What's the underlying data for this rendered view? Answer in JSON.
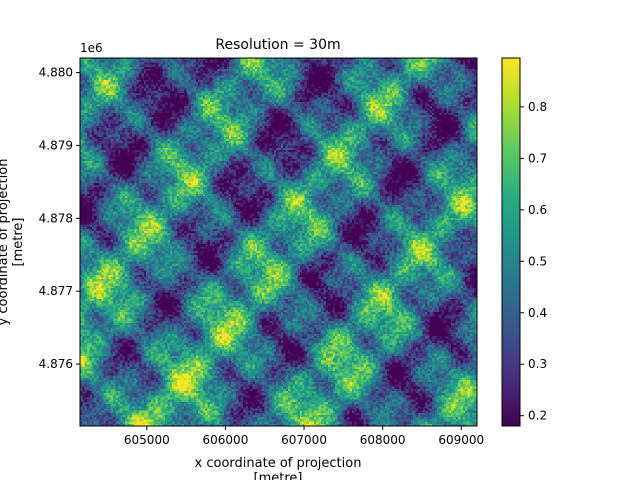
{
  "chart_data": {
    "type": "heatmap",
    "title": "Resolution = 30m",
    "xlabel_line1": "x coordinate of projection",
    "xlabel_line2": "[metre]",
    "ylabel_line1": "y coordinate of projection",
    "ylabel_line2": "[metre]",
    "offset_label": "1e6",
    "x_range": [
      604150,
      609200
    ],
    "y_range": [
      4875150,
      4880200
    ],
    "x_ticks": [
      605000,
      606000,
      607000,
      608000,
      609000
    ],
    "x_tick_labels": [
      "605000",
      "606000",
      "607000",
      "608000",
      "609000"
    ],
    "y_ticks": [
      4876000,
      4877000,
      4878000,
      4879000,
      4880000
    ],
    "y_tick_labels": [
      "4.876",
      "4.877",
      "4.878",
      "4.879",
      "4.880"
    ],
    "value_range": [
      0.18,
      0.895
    ],
    "colorbar_ticks": [
      0.2,
      0.3,
      0.4,
      0.5,
      0.6,
      0.7,
      0.8
    ],
    "colorbar_tick_labels": [
      "0.2",
      "0.3",
      "0.4",
      "0.5",
      "0.6",
      "0.7",
      "0.8"
    ],
    "colormap": "viridis",
    "grid": false
  }
}
